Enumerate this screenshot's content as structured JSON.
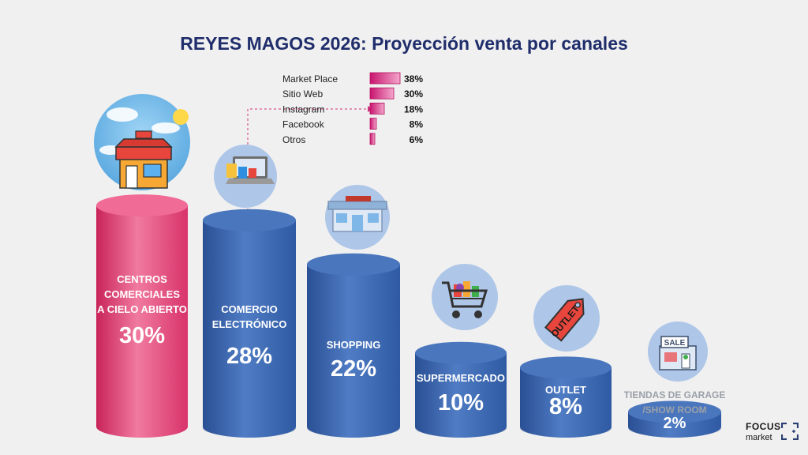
{
  "title": "REYES MAGOS 2026: Proyección venta por canales",
  "chart_data": [
    {
      "type": "bar",
      "style": "3d-cylinders",
      "categories": [
        [
          "CENTROS",
          "COMERCIALES",
          "A CIELO ABIERTO"
        ],
        [
          "COMERCIO",
          "ELECTRÓNICO"
        ],
        [
          "SHOPPING"
        ],
        [
          "SUPERMERCADO"
        ],
        [
          "OUTLET"
        ],
        [
          "TIENDAS DE GARAGE",
          "/SHOW ROOM"
        ]
      ],
      "values": [
        30,
        28,
        22,
        10,
        8,
        2
      ],
      "value_labels": [
        "30%",
        "28%",
        "22%",
        "10%",
        "8%",
        "2%"
      ],
      "colors": [
        "#e8457a",
        "#3c66ad",
        "#3c66ad",
        "#3c66ad",
        "#3c66ad",
        "#3c66ad"
      ],
      "icons": [
        "storefront-icon",
        "laptop-shopping-icon",
        "shopping-center-icon",
        "shopping-cart-icon",
        "outlet-tag-icon",
        "sale-shop-icon"
      ]
    },
    {
      "type": "bar",
      "orientation": "horizontal",
      "categories": [
        "Market Place",
        "Sitio Web",
        "Instagram",
        "Facebook",
        "Otros"
      ],
      "values": [
        38,
        30,
        18,
        8,
        6
      ],
      "value_labels": [
        "38%",
        "30%",
        "18%",
        "8%",
        "6%"
      ],
      "color": "#e0418f"
    }
  ],
  "logo": {
    "line1": "FOCUS",
    "line2": "market"
  }
}
